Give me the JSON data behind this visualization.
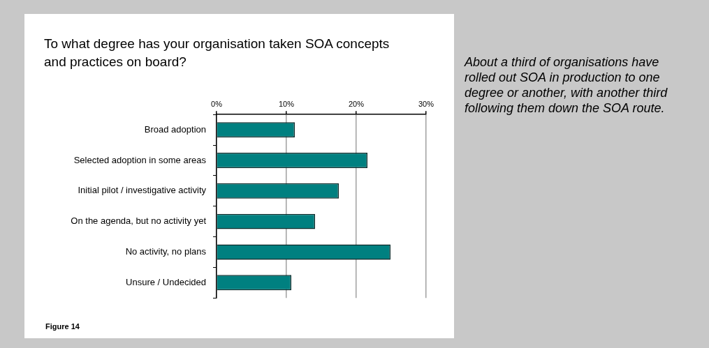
{
  "chart_data": {
    "type": "bar",
    "orientation": "horizontal",
    "title": "To what degree has your organisation taken SOA concepts and practices on board?",
    "categories": [
      "Broad adoption",
      "Selected adoption in some areas",
      "Initial pilot / investigative activity",
      "On the agenda, but no activity yet",
      "No activity, no plans",
      "Unsure / Undecided"
    ],
    "values": [
      11.2,
      21.6,
      17.5,
      14.1,
      24.9,
      10.7
    ],
    "color": "#008080",
    "xlim": [
      0,
      30
    ],
    "xticks": [
      {
        "value": 0,
        "label": "0%"
      },
      {
        "value": 10,
        "label": "10%"
      },
      {
        "value": 20,
        "label": "20%"
      },
      {
        "value": 30,
        "label": "30%"
      }
    ],
    "grid": "x",
    "annotations": [
      "Figure 14",
      "About a third of organisations have rolled out SOA in production to one degree or another, with another third following them down the SOA route."
    ]
  }
}
